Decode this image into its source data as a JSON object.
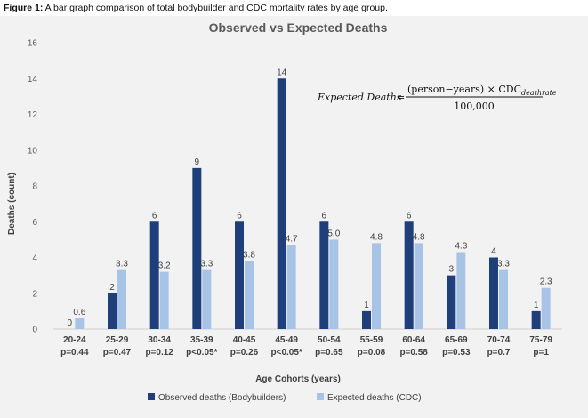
{
  "caption": {
    "label": "Figure 1:",
    "text": " A bar graph comparison of total bodybuilder and CDC mortality rates by age group."
  },
  "formula": {
    "lhs": "Expected Deaths",
    "equals": "=",
    "numerator_main": "(person−years) × CDC",
    "numerator_sub": "deathrate",
    "denominator": "100,000"
  },
  "chart_data": {
    "type": "bar",
    "title": "Observed vs Expected Deaths",
    "xlabel": "Age Cohorts (years)",
    "ylabel": "Deaths (count)",
    "ylim": [
      0,
      16
    ],
    "yticks": [
      "0",
      "2",
      "4",
      "6",
      "8",
      "10",
      "12",
      "14",
      "16"
    ],
    "grid": false,
    "legend_position": "bottom",
    "categories": [
      "20-24",
      "25-29",
      "30-34",
      "35-39",
      "40-45",
      "45-49",
      "50-54",
      "55-59",
      "60-64",
      "65-69",
      "70-74",
      "75-79"
    ],
    "p_values": [
      "p=0.44",
      "p=0.47",
      "p=0.12",
      "p<0.05*",
      "p=0.26",
      "p<0.05*",
      "p=0.65",
      "p=0.08",
      "p=0.58",
      "p=0.53",
      "p=0.7",
      "p=1"
    ],
    "series": [
      {
        "name": "Observed deaths (Bodybuilders)",
        "color": "#1f3f7a",
        "values": [
          0,
          2,
          6,
          9,
          6,
          14,
          6,
          1,
          6,
          3,
          4,
          1
        ],
        "labels": [
          "0",
          "2",
          "6",
          "9",
          "6",
          "14",
          "6",
          "1",
          "6",
          "3",
          "4",
          "1"
        ]
      },
      {
        "name": "Expected deaths (CDC)",
        "color": "#a7c4e6",
        "values": [
          0.6,
          3.3,
          3.2,
          3.3,
          3.8,
          4.7,
          5.0,
          4.8,
          4.8,
          4.3,
          3.3,
          2.3
        ],
        "labels": [
          "0.6",
          "3.3",
          "3.2",
          "3.3",
          "3.8",
          "4.7",
          "5.0",
          "4.8",
          "4.8",
          "4.3",
          "3.3",
          "2.3"
        ]
      }
    ]
  }
}
